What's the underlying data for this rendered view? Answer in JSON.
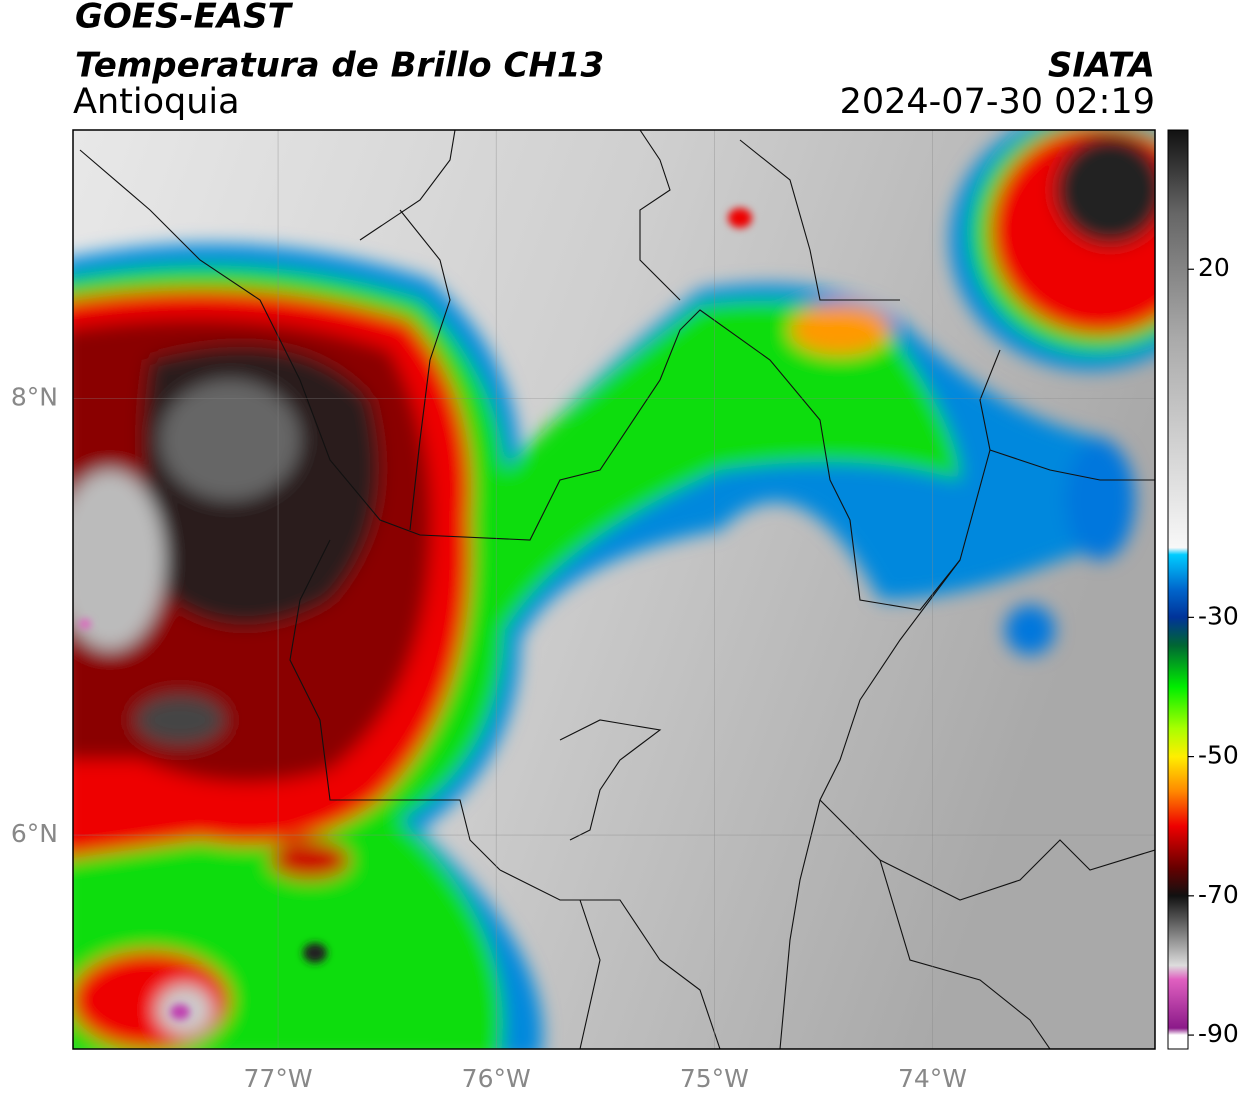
{
  "header": {
    "satellite": "GOES-EAST",
    "product": "Temperatura de Brillo CH13",
    "region": "Antioquia",
    "source": "SIATA",
    "datetime": "2024-07-30 02:19"
  },
  "map": {
    "lonlim": [
      -77.94,
      -72.98
    ],
    "latlim": [
      5.02,
      9.23
    ],
    "lonticks": [
      {
        "value": -77,
        "label": "77°W"
      },
      {
        "value": -76,
        "label": "76°W"
      },
      {
        "value": -75,
        "label": "75°W"
      },
      {
        "value": -74,
        "label": "74°W"
      }
    ],
    "latticks": [
      {
        "value": 8,
        "label": "8°N"
      },
      {
        "value": 6,
        "label": "6°N"
      }
    ],
    "grid": true
  },
  "colorbar": {
    "lim": [
      -92,
      40
    ],
    "ticks": [
      20,
      -30,
      -50,
      -70,
      -90
    ],
    "stops": [
      {
        "value": 40,
        "color": "#111111"
      },
      {
        "value": 28,
        "color": "#666666"
      },
      {
        "value": 10,
        "color": "#aaaaaa"
      },
      {
        "value": -20,
        "color": "#f8f8f8"
      },
      {
        "value": -21,
        "color": "#00ccff"
      },
      {
        "value": -26,
        "color": "#0066cc"
      },
      {
        "value": -30,
        "color": "#003399"
      },
      {
        "value": -34,
        "color": "#006633"
      },
      {
        "value": -40,
        "color": "#00ee00"
      },
      {
        "value": -46,
        "color": "#aaff00"
      },
      {
        "value": -50,
        "color": "#ffee00"
      },
      {
        "value": -55,
        "color": "#ff8800"
      },
      {
        "value": -60,
        "color": "#ee0000"
      },
      {
        "value": -66,
        "color": "#660000"
      },
      {
        "value": -70,
        "color": "#111111"
      },
      {
        "value": -75,
        "color": "#777777"
      },
      {
        "value": -80,
        "color": "#dddddd"
      },
      {
        "value": -82,
        "color": "#e060c0"
      },
      {
        "value": -89,
        "color": "#8b1a89"
      },
      {
        "value": -90,
        "color": "#ffffff"
      },
      {
        "value": -92,
        "color": "#ffffff"
      }
    ]
  }
}
